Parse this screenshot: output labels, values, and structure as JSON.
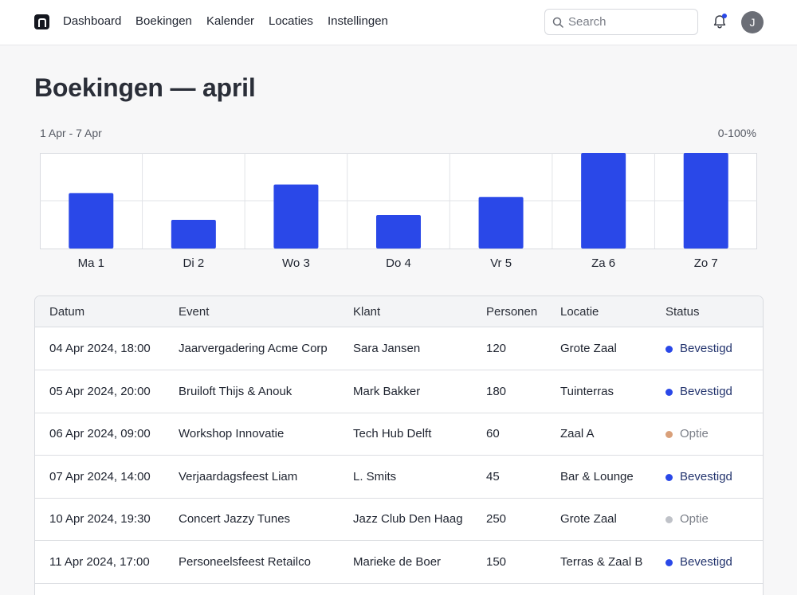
{
  "nav": {
    "items": [
      "Dashboard",
      "Boekingen",
      "Kalender",
      "Locaties",
      "Instellingen"
    ]
  },
  "search": {
    "placeholder": "Search",
    "value": ""
  },
  "user": {
    "initial": "J"
  },
  "notifications": {
    "has_unread": true,
    "dot_color": "#2a48e8"
  },
  "page": {
    "title": "Boekingen — april"
  },
  "chart_range": "1 Apr - 7 Apr",
  "chart_scale": "0-100%",
  "chart_data": {
    "type": "bar",
    "categories": [
      "Ma 1",
      "Di 2",
      "Wo 3",
      "Do 4",
      "Vr 5",
      "Za 6",
      "Zo 7"
    ],
    "values": [
      58,
      30,
      67,
      35,
      54,
      100,
      100
    ],
    "ylim": [
      0,
      100
    ],
    "y_unit": "%",
    "grid": true,
    "bar_color": "#2a48e8"
  },
  "table": {
    "headers": [
      "Datum",
      "Event",
      "Klant",
      "Personen",
      "Locatie",
      "Status"
    ],
    "rows": [
      {
        "datum": "04 Apr 2024, 18:00",
        "event": "Jaarvergadering Acme Corp",
        "klant": "Sara Jansen",
        "personen": "120",
        "locatie": "Grote Zaal",
        "status": "Bevestigd",
        "status_color": "#2a48e8",
        "status_text_color": "#23346e"
      },
      {
        "datum": "05 Apr 2024, 20:00",
        "event": "Bruiloft Thijs & Anouk",
        "klant": "Mark Bakker",
        "personen": "180",
        "locatie": "Tuinterras",
        "status": "Bevestigd",
        "status_color": "#2a48e8",
        "status_text_color": "#23346e"
      },
      {
        "datum": "06 Apr 2024, 09:00",
        "event": "Workshop Innovatie",
        "klant": "Tech Hub Delft",
        "personen": "60",
        "locatie": "Zaal A",
        "status": "Optie",
        "status_color": "#d9a07a",
        "status_text_color": "#7b7f88"
      },
      {
        "datum": "07 Apr 2024, 14:00",
        "event": "Verjaardagsfeest Liam",
        "klant": "L. Smits",
        "personen": "45",
        "locatie": "Bar & Lounge",
        "status": "Bevestigd",
        "status_color": "#2a48e8",
        "status_text_color": "#23346e"
      },
      {
        "datum": "10 Apr 2024, 19:30",
        "event": "Concert Jazzy Tunes",
        "klant": "Jazz Club Den Haag",
        "personen": "250",
        "locatie": "Grote Zaal",
        "status": "Optie",
        "status_color": "#bfc2c8",
        "status_text_color": "#7b7f88"
      },
      {
        "datum": "11 Apr 2024, 17:00",
        "event": "Personeelsfeest Retailco",
        "klant": "Marieke de Boer",
        "personen": "150",
        "locatie": "Terras & Zaal B",
        "status": "Bevestigd",
        "status_color": "#2a48e8",
        "status_text_color": "#23346e"
      }
    ]
  }
}
